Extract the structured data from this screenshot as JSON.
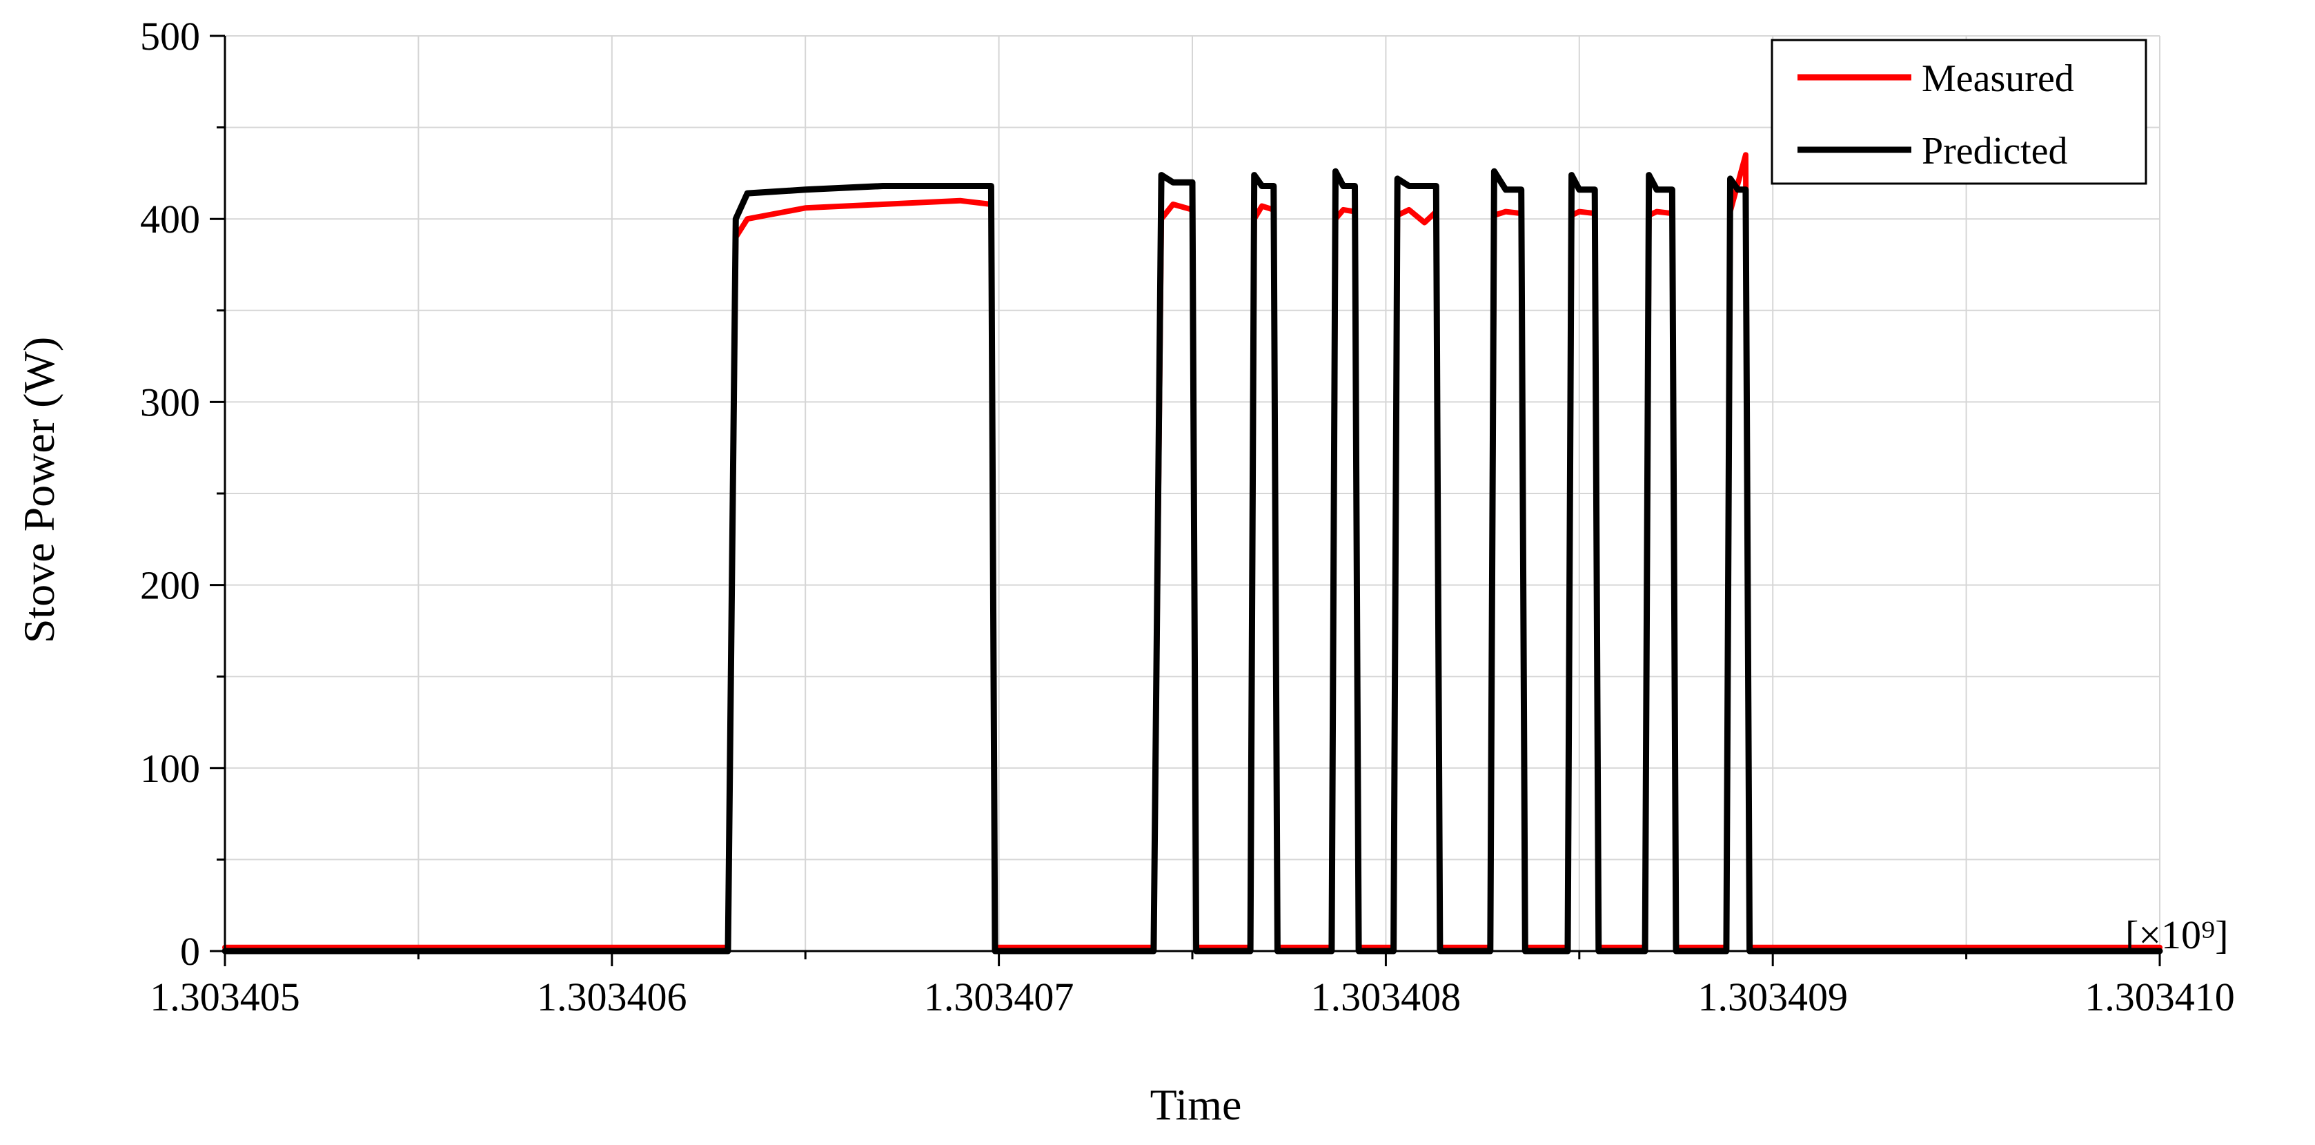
{
  "chart_data": {
    "type": "line",
    "xlabel": "Time",
    "ylabel": "Stove Power (W)",
    "x_multiplier_label": "[×10⁹]",
    "xlim": [
      1.303405,
      1.30341
    ],
    "ylim": [
      0,
      500
    ],
    "x_ticks": [
      1.303405,
      1.303406,
      1.303407,
      1.303408,
      1.303409,
      1.30341
    ],
    "x_tick_labels": [
      "1.303405",
      "1.303406",
      "1.303407",
      "1.303408",
      "1.303409",
      "1.303410"
    ],
    "y_ticks": [
      0,
      100,
      200,
      300,
      400,
      500
    ],
    "y_tick_labels": [
      "0",
      "100",
      "200",
      "300",
      "400",
      "500"
    ],
    "grid": true,
    "legend_position": "top-right",
    "series": [
      {
        "name": "Measured",
        "color": "#ff0000",
        "x": [
          1.303405,
          1.3034062,
          1.3034063,
          1.30340632,
          1.30340635,
          1.3034065,
          1.3034067,
          1.3034069,
          1.30340698,
          1.30340699,
          1.3034074,
          1.30340742,
          1.30340745,
          1.3034075,
          1.30340751,
          1.30340765,
          1.30340766,
          1.30340768,
          1.30340771,
          1.30340772,
          1.30340786,
          1.30340787,
          1.30340789,
          1.30340792,
          1.30340793,
          1.30340802,
          1.30340803,
          1.30340806,
          1.3034081,
          1.30340813,
          1.30340814,
          1.30340827,
          1.30340828,
          1.30340831,
          1.30340835,
          1.30340836,
          1.30340847,
          1.30340848,
          1.3034085,
          1.30340854,
          1.30340855,
          1.30340867,
          1.30340868,
          1.3034087,
          1.30340874,
          1.30340875,
          1.30340888,
          1.30340889,
          1.30340893,
          1.30340894,
          1.303409,
          1.30341
        ],
        "y": [
          2,
          2,
          2,
          390,
          400,
          406,
          408,
          410,
          408,
          2,
          2,
          400,
          408,
          405,
          2,
          2,
          400,
          407,
          405,
          2,
          2,
          400,
          405,
          404,
          2,
          2,
          402,
          405,
          398,
          404,
          2,
          2,
          402,
          404,
          403,
          2,
          2,
          402,
          404,
          403,
          2,
          2,
          402,
          404,
          403,
          2,
          2,
          404,
          435,
          2,
          2,
          2
        ]
      },
      {
        "name": "Predicted",
        "color": "#000000",
        "x": [
          1.303405,
          1.3034063,
          1.30340632,
          1.30340635,
          1.3034065,
          1.3034067,
          1.3034069,
          1.30340698,
          1.30340699,
          1.3034074,
          1.30340742,
          1.30340745,
          1.3034075,
          1.30340751,
          1.30340765,
          1.30340766,
          1.30340768,
          1.30340771,
          1.30340772,
          1.30340786,
          1.30340787,
          1.30340789,
          1.30340792,
          1.30340793,
          1.30340802,
          1.30340803,
          1.30340806,
          1.30340813,
          1.30340814,
          1.30340827,
          1.30340828,
          1.30340831,
          1.30340835,
          1.30340836,
          1.30340847,
          1.30340848,
          1.3034085,
          1.30340854,
          1.30340855,
          1.30340867,
          1.30340868,
          1.3034087,
          1.30340874,
          1.30340875,
          1.30340888,
          1.30340889,
          1.30340891,
          1.30340893,
          1.30340894,
          1.30341
        ],
        "y": [
          0,
          0,
          400,
          414,
          416,
          418,
          418,
          418,
          0,
          0,
          424,
          420,
          420,
          0,
          0,
          424,
          418,
          418,
          0,
          0,
          426,
          418,
          418,
          0,
          0,
          422,
          418,
          418,
          0,
          0,
          426,
          416,
          416,
          0,
          0,
          424,
          416,
          416,
          0,
          0,
          424,
          416,
          416,
          0,
          0,
          422,
          416,
          416,
          0,
          0
        ]
      }
    ]
  }
}
